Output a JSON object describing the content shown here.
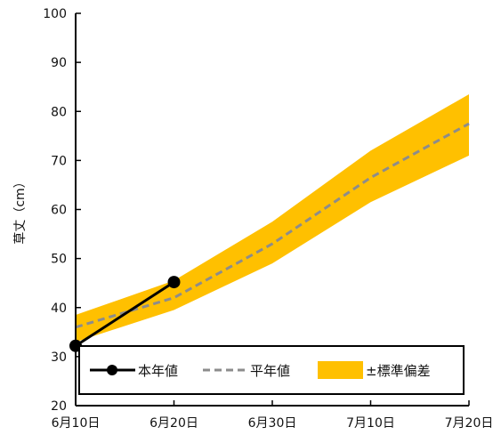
{
  "chart_data": {
    "type": "line",
    "ylabel": "草丈（cm）",
    "ylim": [
      20,
      100
    ],
    "yticks": [
      20,
      30,
      40,
      50,
      60,
      70,
      80,
      90,
      100
    ],
    "xlim": [
      "6月10日",
      "7月20日"
    ],
    "xticks": [
      "6月10日",
      "6月20日",
      "6月30日",
      "7月10日",
      "7月20日"
    ],
    "grid": false,
    "legend_position": "bottom",
    "series": [
      {
        "name": "本年値",
        "style": "solid",
        "marker": "circle",
        "color": "#000000",
        "points": [
          {
            "x": "6月10日",
            "y": 32.2
          },
          {
            "x": "6月20日",
            "y": 45.2
          }
        ]
      },
      {
        "name": "平年値",
        "style": "dashed",
        "color": "#8c8c8c",
        "points": [
          {
            "x": "6月10日",
            "y": 36
          },
          {
            "x": "6月20日",
            "y": 42
          },
          {
            "x": "6月30日",
            "y": 53
          },
          {
            "x": "7月10日",
            "y": 66.5
          },
          {
            "x": "7月20日",
            "y": 77.5
          }
        ]
      },
      {
        "name": "±標準偏差",
        "style": "band",
        "color": "#ffc000",
        "points": [
          {
            "x": "6月10日",
            "low": 33,
            "high": 38.5
          },
          {
            "x": "6月20日",
            "low": 39.5,
            "high": 45.5
          },
          {
            "x": "6月30日",
            "low": 49,
            "high": 57.5
          },
          {
            "x": "7月10日",
            "low": 61.5,
            "high": 72
          },
          {
            "x": "7月20日",
            "low": 71,
            "high": 83.5
          }
        ]
      }
    ]
  }
}
